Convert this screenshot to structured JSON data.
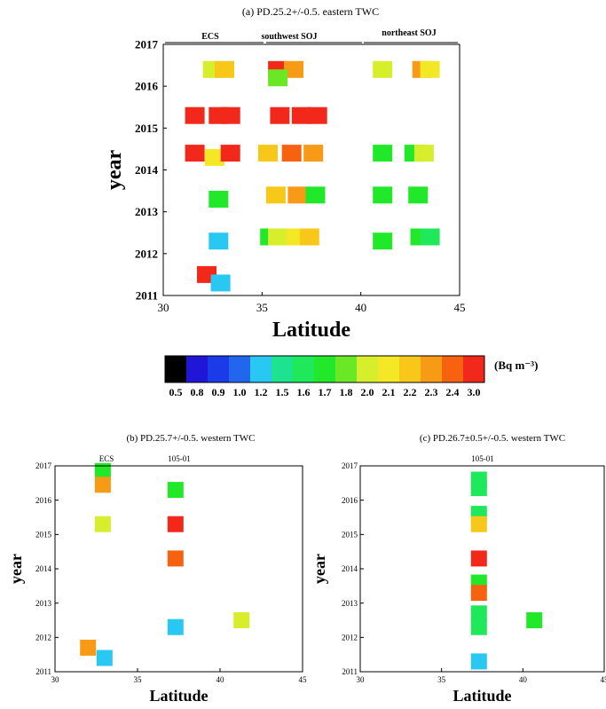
{
  "figure": {
    "colorbar": {
      "unit_label": "(Bq m⁻³)",
      "ticks": [
        "0.5",
        "0.8",
        "0.9",
        "1.0",
        "1.2",
        "1.5",
        "1.6",
        "1.7",
        "1.8",
        "2.0",
        "2.1",
        "2.2",
        "2.3",
        "2.4",
        "3.0"
      ],
      "colors": [
        "#000000",
        "#1f16d8",
        "#1c3be8",
        "#2266ee",
        "#28c8f2",
        "#1ee38e",
        "#1fe85a",
        "#22e82a",
        "#6ae825",
        "#d6ee2c",
        "#f4e826",
        "#f7c81a",
        "#f79a15",
        "#f76210",
        "#f2281a"
      ]
    }
  },
  "chart_data": [
    {
      "id": "a",
      "type": "heatmap",
      "title": "(a)   PD.25.2+/-0.5. eastern TWC",
      "xlabel": "Latitude",
      "ylabel": "year",
      "xlim": [
        30,
        45
      ],
      "ylim": [
        2011,
        2017
      ],
      "xticks": [
        "30",
        "35",
        "40",
        "45"
      ],
      "yticks": [
        "2011",
        "2012",
        "2013",
        "2014",
        "2015",
        "2016",
        "2017"
      ],
      "regions": [
        "ECS",
        "southwest SOJ",
        "northeast SOJ"
      ],
      "cells": [
        {
          "lat": 32.5,
          "year": 2016.4,
          "value": 2.0
        },
        {
          "lat": 33.1,
          "year": 2016.4,
          "value": 2.2
        },
        {
          "lat": 35.8,
          "year": 2016.4,
          "value": 3.0
        },
        {
          "lat": 36.6,
          "year": 2016.4,
          "value": 2.3
        },
        {
          "lat": 35.8,
          "year": 2016.2,
          "value": 1.8
        },
        {
          "lat": 41.1,
          "year": 2016.4,
          "value": 2.0
        },
        {
          "lat": 43.1,
          "year": 2016.4,
          "value": 2.3
        },
        {
          "lat": 43.5,
          "year": 2016.4,
          "value": 2.1
        },
        {
          "lat": 31.6,
          "year": 2015.3,
          "value": 3.0
        },
        {
          "lat": 32.8,
          "year": 2015.3,
          "value": 3.0
        },
        {
          "lat": 33.4,
          "year": 2015.3,
          "value": 3.0
        },
        {
          "lat": 35.9,
          "year": 2015.3,
          "value": 3.0
        },
        {
          "lat": 37.0,
          "year": 2015.3,
          "value": 3.0
        },
        {
          "lat": 37.8,
          "year": 2015.3,
          "value": 3.0
        },
        {
          "lat": 31.6,
          "year": 2014.4,
          "value": 3.0
        },
        {
          "lat": 32.6,
          "year": 2014.3,
          "value": 2.1
        },
        {
          "lat": 33.4,
          "year": 2014.4,
          "value": 3.0
        },
        {
          "lat": 35.3,
          "year": 2014.4,
          "value": 2.2
        },
        {
          "lat": 36.5,
          "year": 2014.4,
          "value": 2.4
        },
        {
          "lat": 37.6,
          "year": 2014.4,
          "value": 2.3
        },
        {
          "lat": 41.1,
          "year": 2014.4,
          "value": 1.7
        },
        {
          "lat": 42.7,
          "year": 2014.4,
          "value": 1.7
        },
        {
          "lat": 43.2,
          "year": 2014.4,
          "value": 2.0
        },
        {
          "lat": 32.8,
          "year": 2013.3,
          "value": 1.7
        },
        {
          "lat": 35.7,
          "year": 2013.4,
          "value": 2.2
        },
        {
          "lat": 36.8,
          "year": 2013.4,
          "value": 2.3
        },
        {
          "lat": 37.7,
          "year": 2013.4,
          "value": 1.7
        },
        {
          "lat": 41.1,
          "year": 2013.4,
          "value": 1.7
        },
        {
          "lat": 42.9,
          "year": 2013.4,
          "value": 1.7
        },
        {
          "lat": 35.4,
          "year": 2012.4,
          "value": 1.7
        },
        {
          "lat": 35.8,
          "year": 2012.4,
          "value": 2.0
        },
        {
          "lat": 36.7,
          "year": 2012.4,
          "value": 2.1
        },
        {
          "lat": 37.4,
          "year": 2012.4,
          "value": 2.2
        },
        {
          "lat": 41.1,
          "year": 2012.3,
          "value": 1.7
        },
        {
          "lat": 43.0,
          "year": 2012.4,
          "value": 1.7
        },
        {
          "lat": 43.5,
          "year": 2012.4,
          "value": 1.6
        },
        {
          "lat": 32.8,
          "year": 2012.3,
          "value": 1.2
        },
        {
          "lat": 32.2,
          "year": 2011.5,
          "value": 3.0
        },
        {
          "lat": 32.9,
          "year": 2011.3,
          "value": 1.2
        }
      ]
    },
    {
      "id": "b",
      "type": "heatmap",
      "title": "(b) PD.25.7+/-0.5. western TWC",
      "xlabel": "Latitude",
      "ylabel": "year",
      "xlim": [
        30,
        45
      ],
      "ylim": [
        2011,
        2017
      ],
      "xticks": [
        "30",
        "35",
        "40",
        "45"
      ],
      "yticks": [
        "2011",
        "2012",
        "2013",
        "2014",
        "2015",
        "2016",
        "2017"
      ],
      "regions": [
        "ECS",
        "105-01"
      ],
      "cells": [
        {
          "lat": 32.9,
          "year": 2016.85,
          "value": 1.7
        },
        {
          "lat": 32.9,
          "year": 2016.45,
          "value": 2.3
        },
        {
          "lat": 37.3,
          "year": 2016.3,
          "value": 1.7
        },
        {
          "lat": 32.9,
          "year": 2015.3,
          "value": 2.0
        },
        {
          "lat": 37.3,
          "year": 2015.3,
          "value": 3.0
        },
        {
          "lat": 37.3,
          "year": 2014.3,
          "value": 2.4
        },
        {
          "lat": 41.3,
          "year": 2012.5,
          "value": 2.0
        },
        {
          "lat": 37.3,
          "year": 2012.3,
          "value": 1.2
        },
        {
          "lat": 32.0,
          "year": 2011.7,
          "value": 2.3
        },
        {
          "lat": 33.0,
          "year": 2011.4,
          "value": 1.2
        }
      ]
    },
    {
      "id": "c",
      "type": "heatmap",
      "title": "(c) PD.26.7±0.5+/-0.5. western TWC",
      "xlabel": "Latitude",
      "ylabel": "year",
      "xlim": [
        30,
        45
      ],
      "ylim": [
        2011,
        2017
      ],
      "xticks": [
        "30",
        "35",
        "40",
        "45"
      ],
      "yticks": [
        "2011",
        "2012",
        "2013",
        "2014",
        "2015",
        "2016",
        "2017"
      ],
      "regions": [
        "105-01"
      ],
      "cells": [
        {
          "lat": 37.3,
          "year": 2016.6,
          "value": 1.6
        },
        {
          "lat": 37.3,
          "year": 2016.35,
          "value": 1.6
        },
        {
          "lat": 37.3,
          "year": 2015.6,
          "value": 1.6
        },
        {
          "lat": 37.3,
          "year": 2015.3,
          "value": 2.2
        },
        {
          "lat": 37.3,
          "year": 2014.3,
          "value": 3.0
        },
        {
          "lat": 37.3,
          "year": 2013.6,
          "value": 1.7
        },
        {
          "lat": 37.3,
          "year": 2013.3,
          "value": 2.4
        },
        {
          "lat": 37.3,
          "year": 2012.7,
          "value": 1.6
        },
        {
          "lat": 37.3,
          "year": 2012.3,
          "value": 1.6
        },
        {
          "lat": 40.7,
          "year": 2012.5,
          "value": 1.7
        },
        {
          "lat": 37.3,
          "year": 2011.3,
          "value": 1.2
        }
      ]
    }
  ]
}
